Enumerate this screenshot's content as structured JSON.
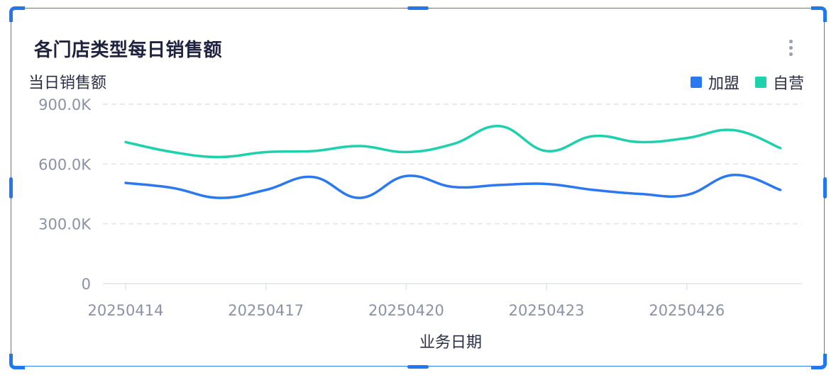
{
  "title": "各门店类型每日销售额",
  "more_icon": "more-vertical-icon",
  "colors": {
    "accent": "#2277ee",
    "series1": "#2b78f0",
    "series2": "#1fd0ad",
    "grid": "#dfe3ea",
    "tick": "#8b92a6"
  },
  "chart_data": {
    "type": "line",
    "title": "各门店类型每日销售额",
    "xlabel": "业务日期",
    "ylabel": "当日销售额",
    "x": [
      "20250414",
      "20250415",
      "20250416",
      "20250417",
      "20250418",
      "20250419",
      "20250420",
      "20250421",
      "20250422",
      "20250423",
      "20250424",
      "20250425",
      "20250426",
      "20250427",
      "20250428"
    ],
    "x_tick_labels": [
      "20250414",
      "20250417",
      "20250420",
      "20250423",
      "20250426"
    ],
    "ylim": [
      0,
      900000
    ],
    "y_ticks": [
      0,
      300000,
      600000,
      900000
    ],
    "y_tick_labels": [
      "0",
      "300.0K",
      "600.0K",
      "900.0K"
    ],
    "grid": true,
    "legend_position": "top-right",
    "smooth": true,
    "series": [
      {
        "name": "加盟",
        "color": "#2b78f0",
        "values": [
          505000,
          480000,
          430000,
          470000,
          535000,
          430000,
          540000,
          485000,
          495000,
          500000,
          470000,
          450000,
          445000,
          545000,
          470000
        ]
      },
      {
        "name": "自营",
        "color": "#1fd0ad",
        "values": [
          710000,
          660000,
          635000,
          660000,
          665000,
          690000,
          660000,
          700000,
          790000,
          665000,
          740000,
          710000,
          730000,
          770000,
          680000
        ]
      }
    ]
  }
}
